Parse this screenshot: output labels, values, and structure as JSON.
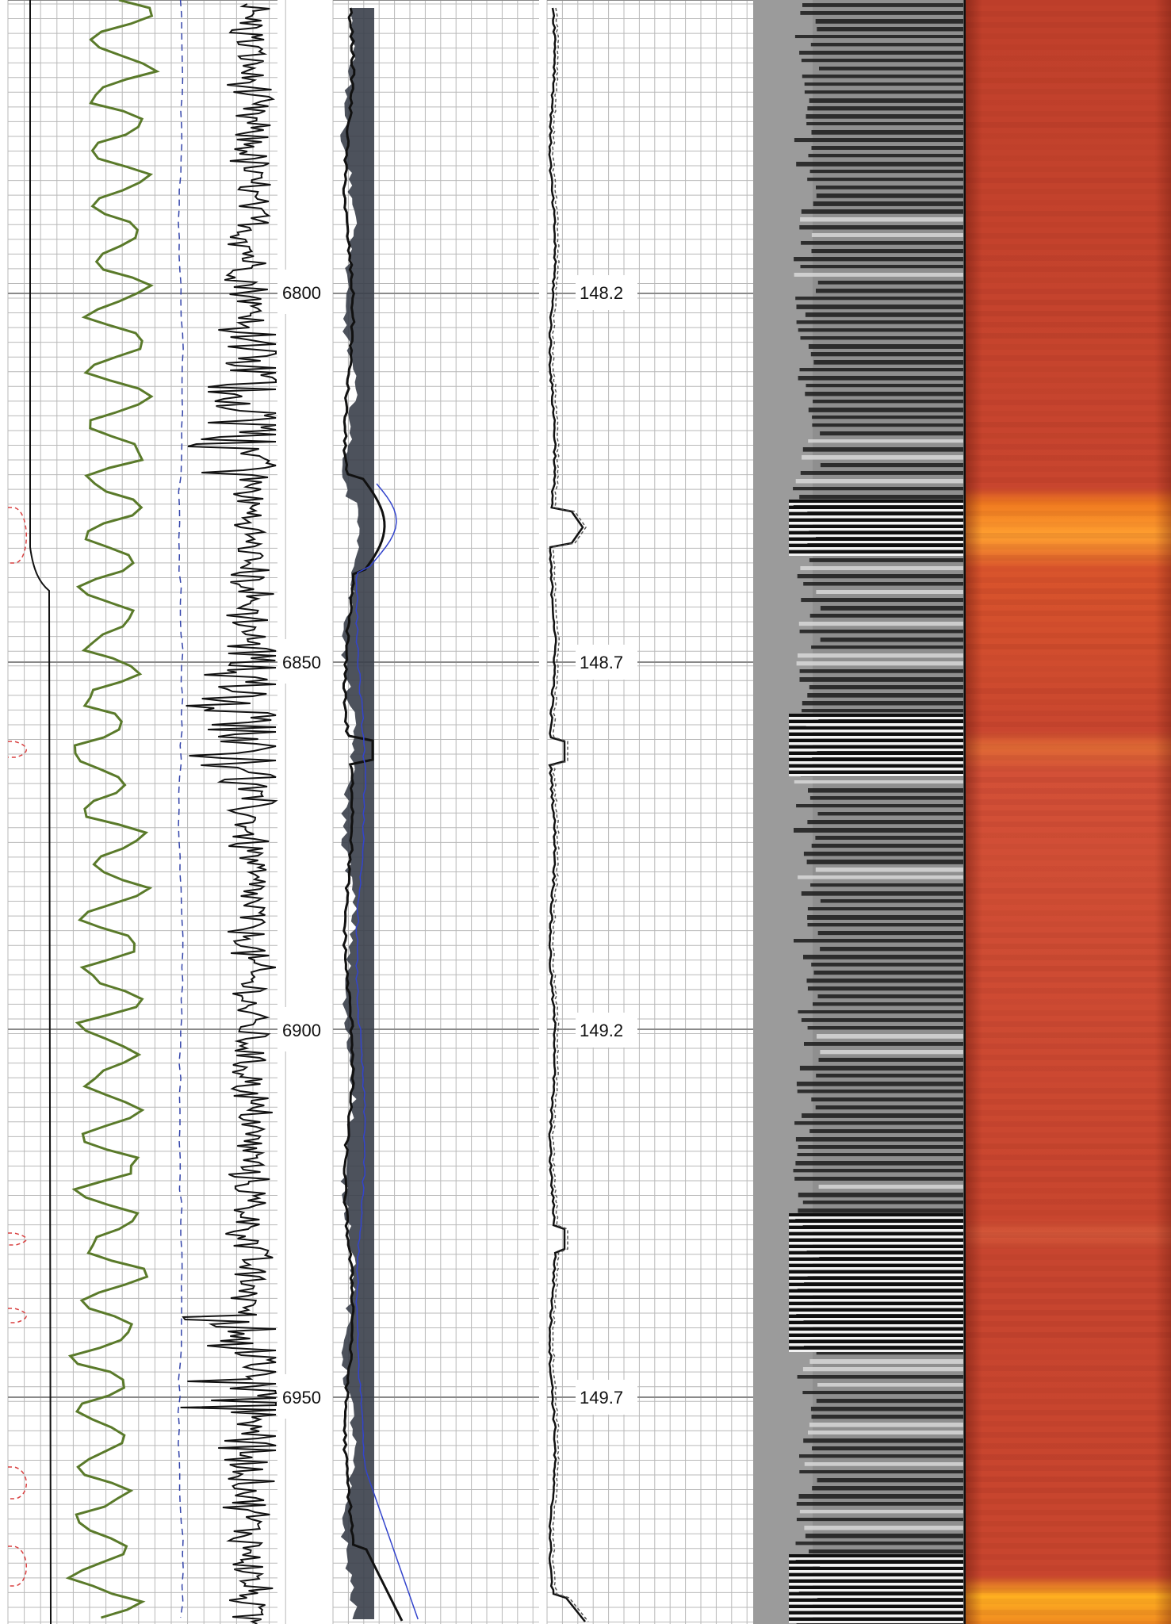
{
  "log": {
    "depth_track": {
      "labels": [
        "6800",
        "6850",
        "6900",
        "6950"
      ]
    },
    "time_track": {
      "labels": [
        "148.2",
        "148.7",
        "149.2",
        "149.7"
      ]
    }
  },
  "colors": {
    "grid_minor": "#b9b9b9",
    "grid_major": "#8a8a8a",
    "black_curve": "#111111",
    "green_curve": "#5a7a2a",
    "blue_dashed": "#3344aa",
    "red_dashed": "#d94040",
    "blue_curve": "#3344cc",
    "shading": "#3a3f4a",
    "heat_base": "#c8452e",
    "heat_hot": "#ff8a1a"
  },
  "icons": {
    "depth_track": "ruler-scale",
    "acoustic_track": "waveform-image",
    "heat_track": "temperature-strip"
  }
}
